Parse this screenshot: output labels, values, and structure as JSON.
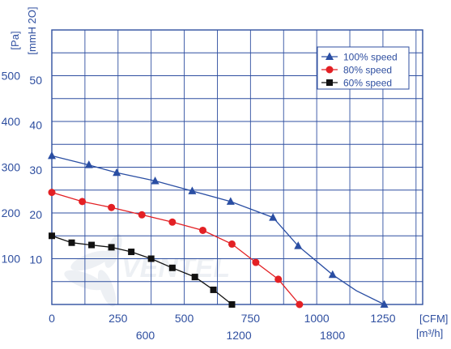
{
  "chart_data": {
    "type": "line",
    "units": {
      "left_outer": "[Pa]",
      "left_inner": "[mmH 2O]",
      "bottom_top": "[CFM]",
      "bottom_bottom": "[m³/h]"
    },
    "axes": {
      "x_cfm": {
        "ticks": [
          "0",
          "250",
          "500",
          "750",
          "1000",
          "1250"
        ],
        "range": [
          0,
          1400
        ]
      },
      "x_m3h": {
        "ticks": [
          "600",
          "1200",
          "1800"
        ]
      },
      "y_pa": {
        "ticks": [
          "100",
          "200",
          "300",
          "400",
          "500"
        ],
        "range": [
          0,
          600
        ]
      },
      "y_mmh2o": {
        "ticks": [
          "10",
          "20",
          "30",
          "40",
          "50"
        ]
      }
    },
    "grid": true,
    "legend_position": "top-right",
    "series": [
      {
        "name": "100%  speed",
        "color": "#2a4ea3",
        "marker": "triangle",
        "x": [
          0,
          140,
          245,
          390,
          530,
          675,
          790,
          835,
          930,
          1060,
          1150,
          1255
        ],
        "y": [
          325,
          305,
          288,
          270,
          248,
          225,
          200,
          190,
          128,
          65,
          30,
          0
        ],
        "marker_x": [
          0,
          140,
          245,
          390,
          530,
          675,
          835,
          930,
          1060,
          1255
        ],
        "marker_y": [
          325,
          305,
          288,
          270,
          248,
          225,
          190,
          128,
          65,
          0
        ]
      },
      {
        "name": "80%  speed",
        "color": "#e32024",
        "marker": "circle",
        "x": [
          0,
          115,
          225,
          340,
          455,
          570,
          680,
          770,
          855,
          935
        ],
        "y": [
          245,
          225,
          212,
          196,
          180,
          162,
          132,
          92,
          55,
          0
        ],
        "marker_x": [
          0,
          115,
          225,
          340,
          455,
          570,
          680,
          770,
          855,
          935
        ],
        "marker_y": [
          245,
          225,
          212,
          196,
          180,
          162,
          132,
          92,
          55,
          0
        ]
      },
      {
        "name": "60%  speed",
        "color": "#111111",
        "marker": "square",
        "x": [
          0,
          75,
          150,
          225,
          300,
          375,
          455,
          540,
          610,
          680
        ],
        "y": [
          150,
          135,
          130,
          125,
          115,
          100,
          80,
          60,
          32,
          0
        ],
        "marker_x": [
          0,
          75,
          150,
          225,
          300,
          375,
          455,
          540,
          610,
          680
        ],
        "marker_y": [
          150,
          135,
          130,
          125,
          115,
          100,
          80,
          60,
          32,
          0
        ]
      }
    ]
  }
}
